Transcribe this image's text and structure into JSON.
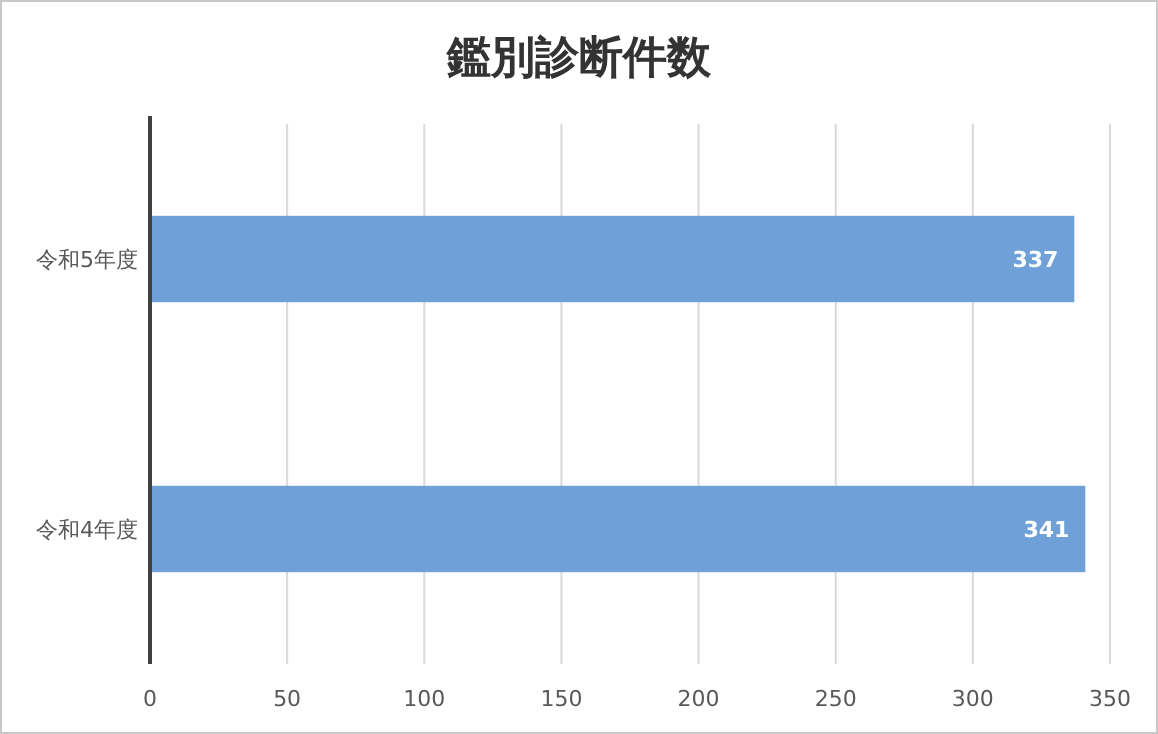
{
  "chart_data": {
    "type": "bar",
    "orientation": "horizontal",
    "title": "鑑別診断件数",
    "categories": [
      "令和5年度",
      "令和4年度"
    ],
    "values": [
      337,
      341
    ],
    "color": "#6fa1d8",
    "xlim": [
      0,
      350
    ],
    "xticks": [
      0,
      50,
      100,
      150,
      200,
      250,
      300,
      350
    ],
    "grid": "x",
    "data_labels": true
  }
}
